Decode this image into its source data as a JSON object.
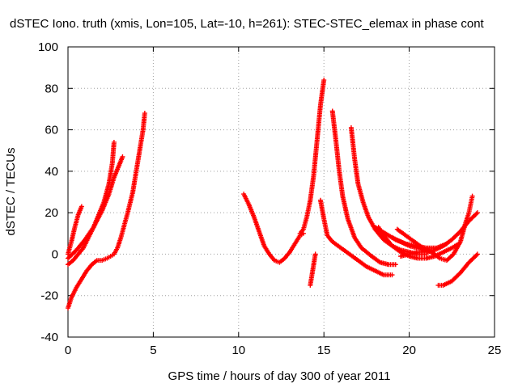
{
  "chart_data": {
    "type": "scatter",
    "title": "dSTEC Iono. truth (xmis, Lon=105, Lat=-10, h=261): STEC-STEC_elemax in phase cont",
    "xlabel": "GPS time / hours of day 300 of year 2011",
    "ylabel": "dSTEC  / TECUs",
    "xlim": [
      0,
      25
    ],
    "ylim": [
      -40,
      100
    ],
    "xticks": [
      "0",
      "5",
      "10",
      "15",
      "20",
      "25"
    ],
    "yticks": [
      "-40",
      "-20",
      "0",
      "20",
      "40",
      "60",
      "80",
      "100"
    ],
    "grid": true,
    "legend": "none",
    "marker": "plus",
    "color": "#ff0000",
    "series": [
      {
        "points": [
          [
            0.0,
            -26
          ],
          [
            0.2,
            -21
          ],
          [
            0.5,
            -16
          ],
          [
            0.8,
            -12
          ],
          [
            1.1,
            -8
          ],
          [
            1.4,
            -5
          ],
          [
            1.7,
            -3
          ],
          [
            2.0,
            -3
          ],
          [
            2.3,
            -2
          ],
          [
            2.5,
            -1
          ],
          [
            2.7,
            0
          ],
          [
            2.9,
            3
          ],
          [
            3.1,
            8
          ],
          [
            3.3,
            14
          ],
          [
            3.5,
            20
          ],
          [
            3.8,
            30
          ],
          [
            4.0,
            40
          ],
          [
            4.2,
            50
          ],
          [
            4.4,
            60
          ],
          [
            4.5,
            68
          ]
        ]
      },
      {
        "points": [
          [
            0.0,
            -5
          ],
          [
            0.3,
            -3
          ],
          [
            0.6,
            0
          ],
          [
            0.9,
            3
          ],
          [
            1.2,
            8
          ],
          [
            1.5,
            13
          ],
          [
            1.8,
            19
          ],
          [
            2.1,
            25
          ],
          [
            2.4,
            34
          ],
          [
            2.6,
            44
          ],
          [
            2.7,
            54
          ]
        ]
      },
      {
        "points": [
          [
            0.0,
            -2
          ],
          [
            0.5,
            2
          ],
          [
            1.0,
            7
          ],
          [
            1.5,
            13
          ],
          [
            2.0,
            21
          ],
          [
            2.4,
            29
          ],
          [
            2.7,
            37
          ],
          [
            3.0,
            43
          ],
          [
            3.2,
            47
          ]
        ]
      },
      {
        "points": [
          [
            0.0,
            0
          ],
          [
            0.2,
            6
          ],
          [
            0.4,
            13
          ],
          [
            0.6,
            19
          ],
          [
            0.8,
            23
          ]
        ]
      },
      {
        "points": [
          [
            10.3,
            29
          ],
          [
            10.6,
            24
          ],
          [
            10.9,
            18
          ],
          [
            11.2,
            11
          ],
          [
            11.5,
            4
          ],
          [
            11.8,
            0
          ],
          [
            12.1,
            -3
          ],
          [
            12.4,
            -4
          ],
          [
            12.7,
            -2
          ],
          [
            13.0,
            1
          ],
          [
            13.3,
            5
          ],
          [
            13.6,
            9
          ],
          [
            13.8,
            10
          ]
        ]
      },
      {
        "points": [
          [
            13.6,
            10
          ],
          [
            13.8,
            12
          ],
          [
            14.0,
            18
          ],
          [
            14.2,
            26
          ],
          [
            14.4,
            38
          ],
          [
            14.6,
            55
          ],
          [
            14.8,
            72
          ],
          [
            15.0,
            84
          ]
        ]
      },
      {
        "points": [
          [
            14.2,
            -15
          ],
          [
            14.3,
            -10
          ],
          [
            14.4,
            -5
          ],
          [
            14.5,
            0
          ]
        ]
      },
      {
        "points": [
          [
            14.8,
            26
          ],
          [
            15.0,
            17
          ],
          [
            15.2,
            9
          ],
          [
            15.5,
            6
          ],
          [
            16.0,
            3
          ],
          [
            16.5,
            0
          ],
          [
            17.0,
            -3
          ],
          [
            17.5,
            -6
          ],
          [
            18.0,
            -8
          ],
          [
            18.5,
            -10
          ],
          [
            19.0,
            -10
          ]
        ]
      },
      {
        "points": [
          [
            15.5,
            69
          ],
          [
            15.7,
            55
          ],
          [
            15.9,
            40
          ],
          [
            16.1,
            28
          ],
          [
            16.4,
            17
          ],
          [
            16.8,
            8
          ],
          [
            17.2,
            3
          ],
          [
            17.8,
            -1
          ],
          [
            18.3,
            -4
          ],
          [
            18.8,
            -5
          ],
          [
            19.2,
            -5
          ]
        ]
      },
      {
        "points": [
          [
            16.6,
            61
          ],
          [
            16.8,
            46
          ],
          [
            17.0,
            34
          ],
          [
            17.3,
            25
          ],
          [
            17.6,
            18
          ],
          [
            18.0,
            12
          ],
          [
            18.5,
            7
          ],
          [
            19.0,
            4
          ],
          [
            19.5,
            2
          ],
          [
            20.0,
            1
          ],
          [
            20.5,
            0
          ],
          [
            21.0,
            0
          ]
        ]
      },
      {
        "points": [
          [
            18.2,
            13
          ],
          [
            18.5,
            9
          ],
          [
            19.0,
            4
          ],
          [
            19.5,
            1
          ],
          [
            20.0,
            -1
          ],
          [
            20.5,
            -2
          ],
          [
            21.0,
            -2
          ],
          [
            21.5,
            -1
          ],
          [
            22.0,
            1
          ],
          [
            22.5,
            3
          ],
          [
            22.9,
            5
          ]
        ]
      },
      {
        "points": [
          [
            18.0,
            13
          ],
          [
            18.6,
            10
          ],
          [
            19.2,
            7
          ],
          [
            19.8,
            5
          ],
          [
            20.4,
            4
          ],
          [
            21.0,
            3
          ],
          [
            21.6,
            3
          ],
          [
            22.2,
            5
          ]
        ]
      },
      {
        "points": [
          [
            19.3,
            12
          ],
          [
            19.8,
            9
          ],
          [
            20.3,
            6
          ],
          [
            20.8,
            3
          ],
          [
            21.3,
            1
          ],
          [
            21.8,
            -2
          ],
          [
            22.2,
            -3
          ],
          [
            22.6,
            0
          ],
          [
            23.0,
            6
          ],
          [
            23.3,
            15
          ],
          [
            23.5,
            20
          ],
          [
            23.6,
            24
          ],
          [
            23.7,
            28
          ]
        ]
      },
      {
        "points": [
          [
            19.5,
            -1
          ],
          [
            20.0,
            0
          ],
          [
            20.5,
            1
          ],
          [
            21.0,
            1
          ],
          [
            21.5,
            2
          ],
          [
            22.0,
            4
          ],
          [
            22.5,
            7
          ],
          [
            23.0,
            11
          ],
          [
            23.5,
            16
          ],
          [
            24.0,
            20
          ]
        ]
      },
      {
        "points": [
          [
            21.7,
            -15
          ],
          [
            22.0,
            -15
          ],
          [
            22.5,
            -13
          ],
          [
            23.0,
            -9
          ],
          [
            23.5,
            -4
          ],
          [
            24.0,
            0
          ]
        ]
      },
      {
        "points": [
          [
            19.0,
            8
          ],
          [
            19.5,
            6
          ],
          [
            20.0,
            4
          ],
          [
            20.5,
            3
          ],
          [
            21.0,
            2
          ]
        ]
      }
    ]
  }
}
